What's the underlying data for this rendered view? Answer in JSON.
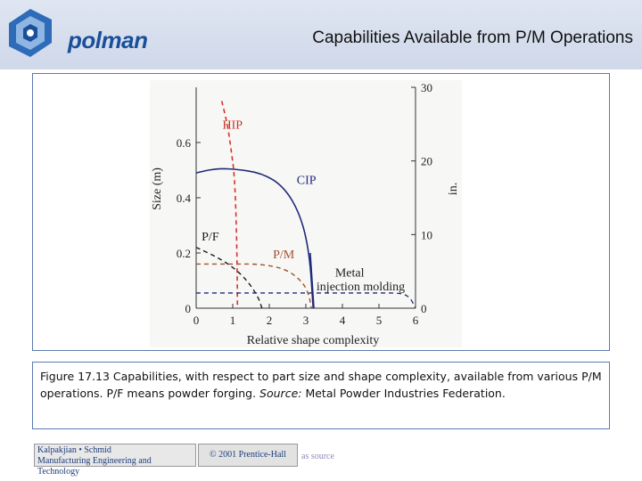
{
  "header": {
    "logo_text": "polman",
    "title": "Capabilities Available from P/M Operations"
  },
  "chart_data": {
    "type": "line",
    "xlabel": "Relative shape complexity",
    "ylabel": "Size (m)",
    "y2label": "in.",
    "xlim": [
      0,
      6
    ],
    "ylim": [
      0,
      0.8
    ],
    "y2lim": [
      0,
      30
    ],
    "x_ticks": [
      0,
      1,
      2,
      3,
      4,
      5,
      6
    ],
    "y_ticks": [
      {
        "v": 0,
        "label": "0"
      },
      {
        "v": 0.2,
        "label": "0.2"
      },
      {
        "v": 0.4,
        "label": "0.4"
      },
      {
        "v": 0.6,
        "label": "0.6"
      }
    ],
    "y2_ticks": [
      0,
      10,
      20,
      30
    ],
    "series": [
      {
        "name": "HIP",
        "color": "#d9322c",
        "points": [
          [
            0.7,
            0.75
          ],
          [
            0.85,
            0.67
          ],
          [
            0.95,
            0.58
          ],
          [
            1.05,
            0.48
          ],
          [
            1.1,
            0.3
          ],
          [
            1.12,
            0.15
          ],
          [
            1.13,
            0.0
          ]
        ]
      },
      {
        "name": "CIP",
        "color": "#1f2a7a",
        "points": [
          [
            0.0,
            0.49
          ],
          [
            0.5,
            0.505
          ],
          [
            1.0,
            0.505
          ],
          [
            1.8,
            0.49
          ],
          [
            2.4,
            0.44
          ],
          [
            2.85,
            0.34
          ],
          [
            3.1,
            0.2
          ],
          [
            3.2,
            0.0
          ]
        ]
      },
      {
        "name": "P/F",
        "color": "#1a1a1a",
        "points": [
          [
            0.0,
            0.22
          ],
          [
            0.5,
            0.19
          ],
          [
            1.0,
            0.15
          ],
          [
            1.4,
            0.1
          ],
          [
            1.7,
            0.04
          ],
          [
            1.8,
            0.0
          ]
        ]
      },
      {
        "name": "P/M",
        "color": "#a0512d",
        "points": [
          [
            0.0,
            0.16
          ],
          [
            1.0,
            0.16
          ],
          [
            1.8,
            0.16
          ],
          [
            2.5,
            0.14
          ],
          [
            2.95,
            0.09
          ],
          [
            3.1,
            0.04
          ],
          [
            3.15,
            0.0
          ]
        ]
      },
      {
        "name": "Metal injection molding",
        "color": "#1f2a7a",
        "points": [
          [
            0.0,
            0.055
          ],
          [
            2.0,
            0.055
          ],
          [
            3.5,
            0.055
          ],
          [
            5.0,
            0.055
          ],
          [
            5.6,
            0.055
          ],
          [
            5.85,
            0.04
          ],
          [
            6.0,
            0.0
          ]
        ]
      }
    ],
    "labels": {
      "hip": "HIP",
      "cip": "CIP",
      "pf": "P/F",
      "pm": "P/M",
      "mim_1": "Metal",
      "mim_2": "injection molding"
    }
  },
  "caption": {
    "pre": "Figure 17.13 Capabilities, with respect to part size and shape complexity, available from various P/M operations. P/F means powder forging. ",
    "source_label": "Source:",
    "post": " Metal Powder Industries Federation."
  },
  "footer": {
    "book_line1": "Kalpakjian • Schmid",
    "book_line2": "Manufacturing Engineering and Technology",
    "copyright": "© 2001 Prentice-Hall",
    "note": "as source"
  }
}
